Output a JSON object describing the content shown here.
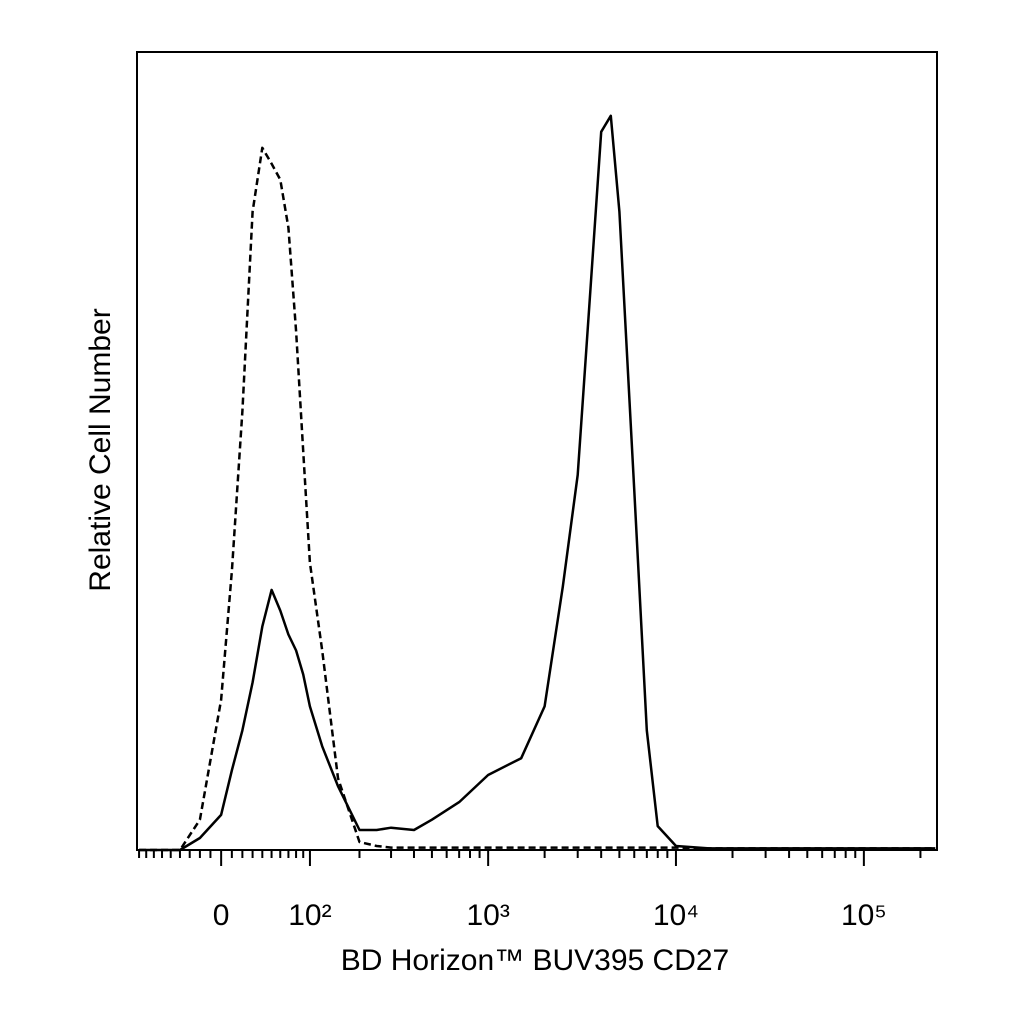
{
  "chart_data": {
    "type": "line",
    "xlabel": "BD Horizon™ BUV395 CD27",
    "ylabel": "Relative Cell Number",
    "xscale": "biexponential",
    "xlim": [
      -93,
      245000
    ],
    "ylim": [
      0,
      100
    ],
    "xticks": [
      0,
      {
        "value": 100,
        "label": "10²"
      },
      {
        "value": 1000,
        "label": "10³"
      },
      {
        "value": 10000,
        "label": "10⁴"
      },
      {
        "value": 100000,
        "label": "10⁵"
      }
    ],
    "xminorticks": [
      -90,
      -80,
      -70,
      -60,
      -50,
      -40,
      -30,
      -20,
      -10,
      10,
      20,
      30,
      40,
      50,
      60,
      70,
      80,
      90,
      200,
      300,
      400,
      500,
      600,
      700,
      800,
      900,
      2000,
      3000,
      4000,
      5000,
      6000,
      7000,
      8000,
      9000,
      20000,
      30000,
      40000,
      50000,
      60000,
      70000,
      80000,
      90000,
      200000
    ],
    "x": [
      -90,
      -60,
      -40,
      -20,
      0,
      10,
      20,
      30,
      40,
      50,
      60,
      70,
      80,
      90,
      100,
      120,
      150,
      200,
      250,
      300,
      400,
      500,
      700,
      1000,
      1500,
      2000,
      2500,
      3000,
      3500,
      4000,
      4500,
      5000,
      6000,
      7000,
      8000,
      10000,
      15000,
      30000,
      100000,
      240000
    ],
    "series": [
      {
        "color": "#000000",
        "dashed": false,
        "values": [
          0,
          0,
          0,
          1.5,
          4.4,
          10,
          15,
          21,
          28,
          32.6,
          30,
          27,
          25,
          22,
          18,
          13,
          8,
          2.5,
          2.5,
          2.8,
          2.5,
          3.8,
          6,
          9.4,
          11.5,
          18,
          33,
          47,
          70,
          90,
          92,
          80,
          45,
          15,
          3,
          0.5,
          0.2,
          0.2,
          0.2,
          0.2
        ]
      },
      {
        "color": "#000000",
        "dashed": true,
        "values": [
          0,
          0,
          0,
          3.8,
          18.8,
          35,
          55,
          80,
          88,
          86,
          84,
          78,
          65,
          50,
          36,
          25,
          9,
          1,
          0.5,
          0.3,
          0.3,
          0.3,
          0.3,
          0.3,
          0.3,
          0.3,
          0.3,
          0.3,
          0.3,
          0.3,
          0.3,
          0.3,
          0.3,
          0.3,
          0.3,
          0.3,
          0.2,
          0.2,
          0.2,
          0.2
        ]
      }
    ]
  }
}
